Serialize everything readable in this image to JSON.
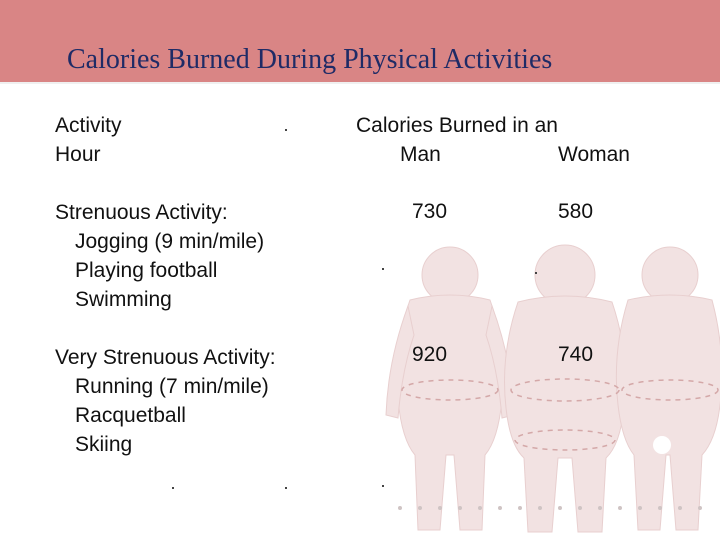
{
  "slide": {
    "title": "Calories Burned During Physical Activities",
    "header": {
      "col1_line1": "Activity",
      "col1_line2": "Hour",
      "col2_line1": "Calories Burned in an",
      "man_label": "Man",
      "woman_label": "Woman"
    },
    "groups": [
      {
        "heading": "Strenuous Activity:",
        "items": [
          "Jogging (9 min/mile)",
          "Playing football",
          "Swimming"
        ],
        "man": "730",
        "woman": "580"
      },
      {
        "heading": "Very Strenuous Activity:",
        "items": [
          "Running (7 min/mile)",
          "Racquetball",
          "Skiing"
        ],
        "man": "920",
        "woman": "740"
      }
    ],
    "background_image": "overweight-body-silhouettes",
    "colors": {
      "title_band": "#d98585",
      "title_text": "#1f2b66",
      "figure_fill": "#f2e2e2"
    }
  }
}
